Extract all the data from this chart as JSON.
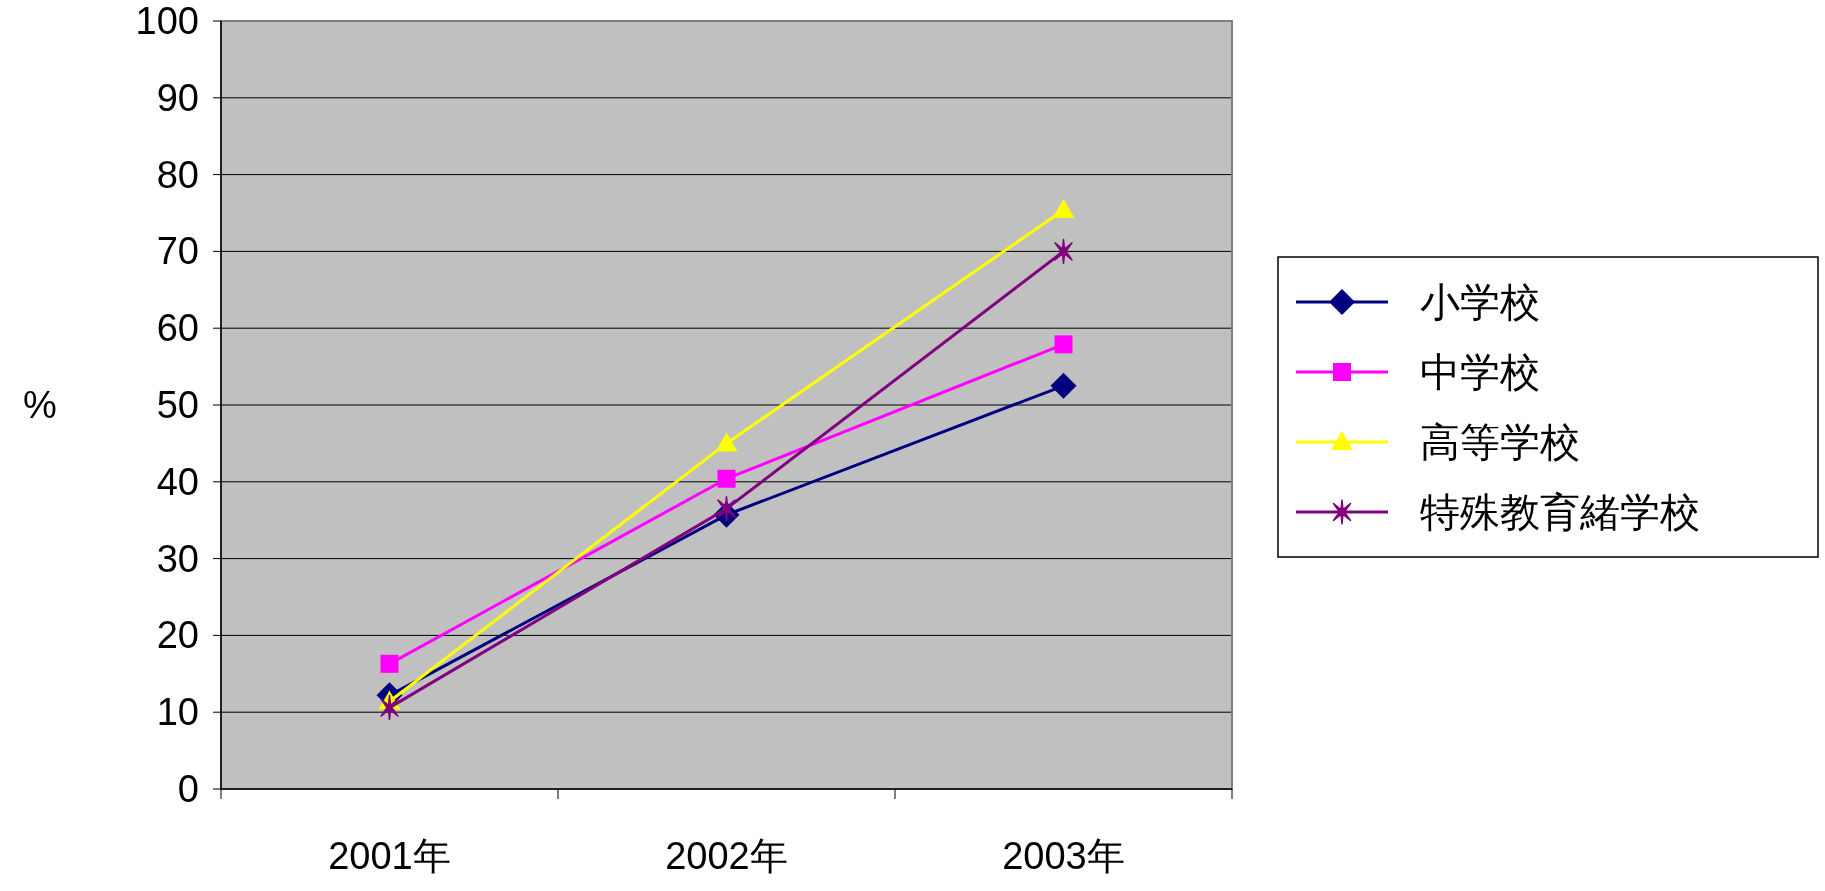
{
  "chart_data": {
    "type": "line",
    "ylabel": "%",
    "categories": [
      "2001年",
      "2002年",
      "2003年"
    ],
    "ylim": [
      0,
      100
    ],
    "yticks": [
      0,
      10,
      20,
      30,
      40,
      50,
      60,
      70,
      80,
      90,
      100
    ],
    "grid": "y",
    "legend": "right",
    "series": [
      {
        "name": "小学校",
        "color": "#000080",
        "marker": "diamond",
        "values": [
          12.2,
          35.7,
          52.5
        ]
      },
      {
        "name": "中学校",
        "color": "#ff00ff",
        "marker": "square",
        "values": [
          16.3,
          40.4,
          57.9
        ]
      },
      {
        "name": "高等学校",
        "color": "#ffff00",
        "marker": "triangle",
        "values": [
          11.4,
          45.0,
          75.4
        ]
      },
      {
        "name": "特殊教育緒学校",
        "color": "#800080",
        "marker": "cross",
        "values": [
          10.6,
          36.5,
          70.0
        ]
      }
    ]
  }
}
